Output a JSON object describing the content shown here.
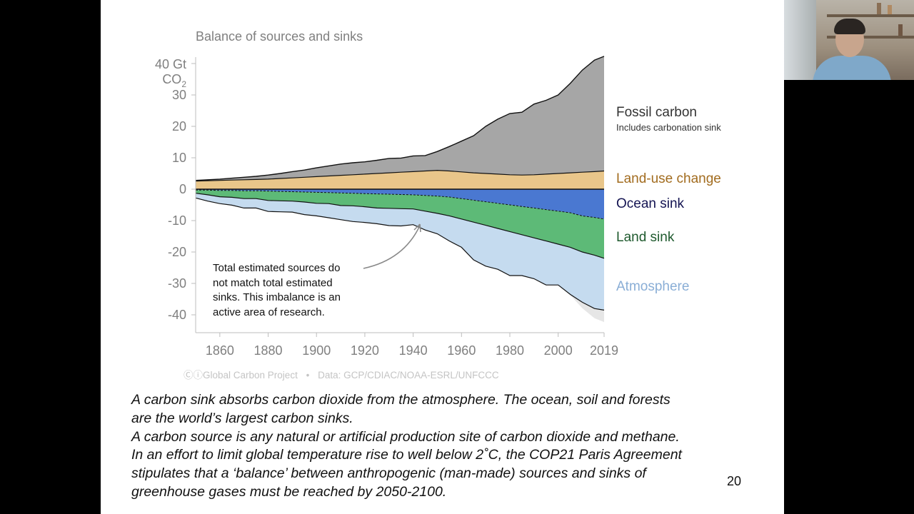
{
  "chart_data": {
    "type": "area",
    "title": "Balance of sources and sinks",
    "ylabel": "Gt CO2",
    "y_unit_label": {
      "value": "40 Gt",
      "unit": "CO",
      "subscript": "2"
    },
    "ylim": [
      -45,
      42
    ],
    "xlim": [
      1850,
      2019
    ],
    "y_ticks": [
      30,
      20,
      10,
      0,
      -10,
      -20,
      -30,
      -40
    ],
    "x_ticks": [
      1860,
      1880,
      1900,
      1920,
      1940,
      1960,
      1980,
      2000,
      2019
    ],
    "grid": false,
    "x": [
      1850,
      1855,
      1860,
      1865,
      1870,
      1875,
      1880,
      1885,
      1890,
      1895,
      1900,
      1905,
      1910,
      1915,
      1920,
      1925,
      1930,
      1935,
      1940,
      1945,
      1950,
      1955,
      1960,
      1965,
      1970,
      1975,
      1980,
      1985,
      1990,
      1995,
      2000,
      2005,
      2010,
      2015,
      2019
    ],
    "series": [
      {
        "name": "Fossil carbon",
        "subtitle": "Includes carbonation sink",
        "color": "#a6a6a6",
        "values": [
          0.2,
          0.3,
          0.4,
          0.6,
          0.8,
          1.0,
          1.3,
          1.6,
          2.0,
          2.3,
          2.8,
          3.2,
          3.6,
          3.8,
          3.9,
          4.2,
          4.6,
          4.5,
          5.0,
          4.9,
          6.0,
          7.8,
          9.8,
          11.8,
          15.0,
          17.5,
          19.5,
          20.0,
          22.5,
          23.5,
          25.0,
          28.5,
          32.5,
          35.5,
          36.5
        ]
      },
      {
        "name": "Land-use change",
        "color": "#e9c68a",
        "values": [
          2.6,
          2.7,
          2.8,
          2.9,
          3.0,
          3.1,
          3.2,
          3.4,
          3.6,
          3.8,
          4.0,
          4.2,
          4.4,
          4.6,
          4.8,
          5.0,
          5.2,
          5.4,
          5.6,
          5.8,
          6.0,
          5.8,
          5.5,
          5.2,
          5.0,
          4.8,
          4.6,
          4.5,
          4.6,
          4.8,
          5.0,
          5.2,
          5.4,
          5.6,
          5.8
        ]
      },
      {
        "name": "Ocean sink",
        "color": "#4a78d1",
        "values": [
          -0.3,
          -0.3,
          -0.4,
          -0.4,
          -0.5,
          -0.5,
          -0.6,
          -0.7,
          -0.8,
          -0.9,
          -1.0,
          -1.1,
          -1.2,
          -1.3,
          -1.4,
          -1.5,
          -1.6,
          -1.7,
          -1.8,
          -2.0,
          -2.2,
          -2.5,
          -3.0,
          -3.5,
          -4.0,
          -4.5,
          -5.0,
          -5.5,
          -6.0,
          -6.5,
          -7.0,
          -7.5,
          -8.5,
          -9.0,
          -9.5
        ]
      },
      {
        "name": "Land sink",
        "color": "#5dba77",
        "values": [
          -1.0,
          -1.5,
          -2.0,
          -2.2,
          -2.5,
          -2.5,
          -3.0,
          -3.0,
          -3.0,
          -3.2,
          -3.5,
          -3.5,
          -4.0,
          -4.0,
          -4.2,
          -4.5,
          -4.5,
          -4.5,
          -4.5,
          -5.0,
          -5.5,
          -6.0,
          -6.5,
          -7.0,
          -7.5,
          -8.0,
          -8.5,
          -9.0,
          -9.5,
          -10.0,
          -10.5,
          -11.0,
          -11.5,
          -12.0,
          -12.5
        ]
      },
      {
        "name": "Atmosphere",
        "color": "#c5dbef",
        "values": [
          -1.5,
          -2.0,
          -2.2,
          -2.5,
          -3.0,
          -3.0,
          -3.5,
          -3.5,
          -3.5,
          -4.0,
          -4.0,
          -4.5,
          -4.5,
          -5.0,
          -5.0,
          -5.0,
          -5.5,
          -5.5,
          -5.0,
          -6.0,
          -6.5,
          -8.0,
          -9.0,
          -12.0,
          -13.0,
          -13.0,
          -14.0,
          -13.0,
          -13.0,
          -14.0,
          -13.0,
          -15.0,
          -16.0,
          -17.0,
          -16.5
        ]
      }
    ],
    "imbalance_color": "#e6e6e6",
    "legend_placement": "right"
  },
  "annotation": {
    "lines": [
      "Total estimated sources do",
      "not match total estimated",
      "sinks. This imbalance is an",
      "active area of research."
    ]
  },
  "credit": {
    "project": "ⒸⓘGlobal Carbon Project",
    "separator": "•",
    "data_source": "Data: GCP/CDIAC/NOAA-ESRL/UNFCCC"
  },
  "caption": {
    "lines": [
      "A carbon sink absorbs carbon dioxide from the atmosphere. The ocean, soil and forests",
      "are the world’s largest carbon sinks.",
      "A carbon source is any natural or artificial production site of carbon dioxide and methane.",
      "In an effort to limit global temperature rise to well below 2˚C, the COP21 Paris Agreement",
      "stipulates that a ‘balance’ between anthropogenic (man-made) sources and sinks of",
      "greenhouse gases must be reached by 2050-2100."
    ]
  },
  "page_number": "20",
  "legend_colors": {
    "fossil": "#333333",
    "land_use": "#a26c1f",
    "ocean": "#141452",
    "land_sink": "#1f5a2e",
    "atmosphere": "#8aaed6"
  }
}
